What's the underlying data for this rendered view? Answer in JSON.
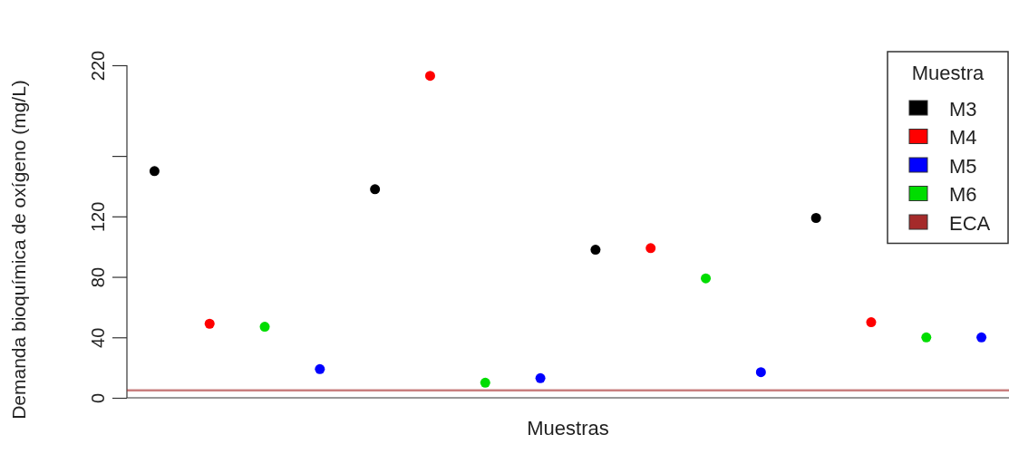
{
  "chart_data": {
    "type": "scatter",
    "xlabel": "Muestras",
    "ylabel": "Demanda bioquímica de oxígeno (mg/L)",
    "legend_title": "Muestra",
    "legend": "top right",
    "marker": "circle",
    "categories": [
      null,
      null,
      null,
      null,
      null,
      null,
      null,
      null,
      null,
      null,
      null,
      null,
      null,
      null,
      null,
      null
    ],
    "ylim": [
      0,
      220
    ],
    "yticks": [
      0,
      40,
      80,
      120,
      {
        "value": 160,
        "label": null
      },
      220
    ],
    "series": [
      {
        "name": "M3",
        "color": "#000000",
        "values": [
          150,
          null,
          null,
          null,
          138,
          null,
          null,
          null,
          98,
          null,
          null,
          null,
          119,
          null,
          null,
          null
        ]
      },
      {
        "name": "M4",
        "color": "#ff0000",
        "values": [
          null,
          49,
          null,
          null,
          null,
          213,
          null,
          null,
          null,
          99,
          null,
          null,
          null,
          50,
          null,
          null
        ]
      },
      {
        "name": "M5",
        "color": "#0000ff",
        "values": [
          null,
          null,
          null,
          19,
          null,
          null,
          null,
          13,
          null,
          null,
          null,
          17,
          null,
          null,
          null,
          40
        ]
      },
      {
        "name": "M6",
        "color": "#00dd00",
        "values": [
          null,
          null,
          47,
          null,
          null,
          null,
          10,
          null,
          null,
          null,
          79,
          null,
          null,
          null,
          40,
          null
        ]
      }
    ],
    "ref_lines": [
      {
        "axis": "y",
        "value": 5,
        "label": "ECA",
        "color": "#a52a2a"
      }
    ]
  }
}
